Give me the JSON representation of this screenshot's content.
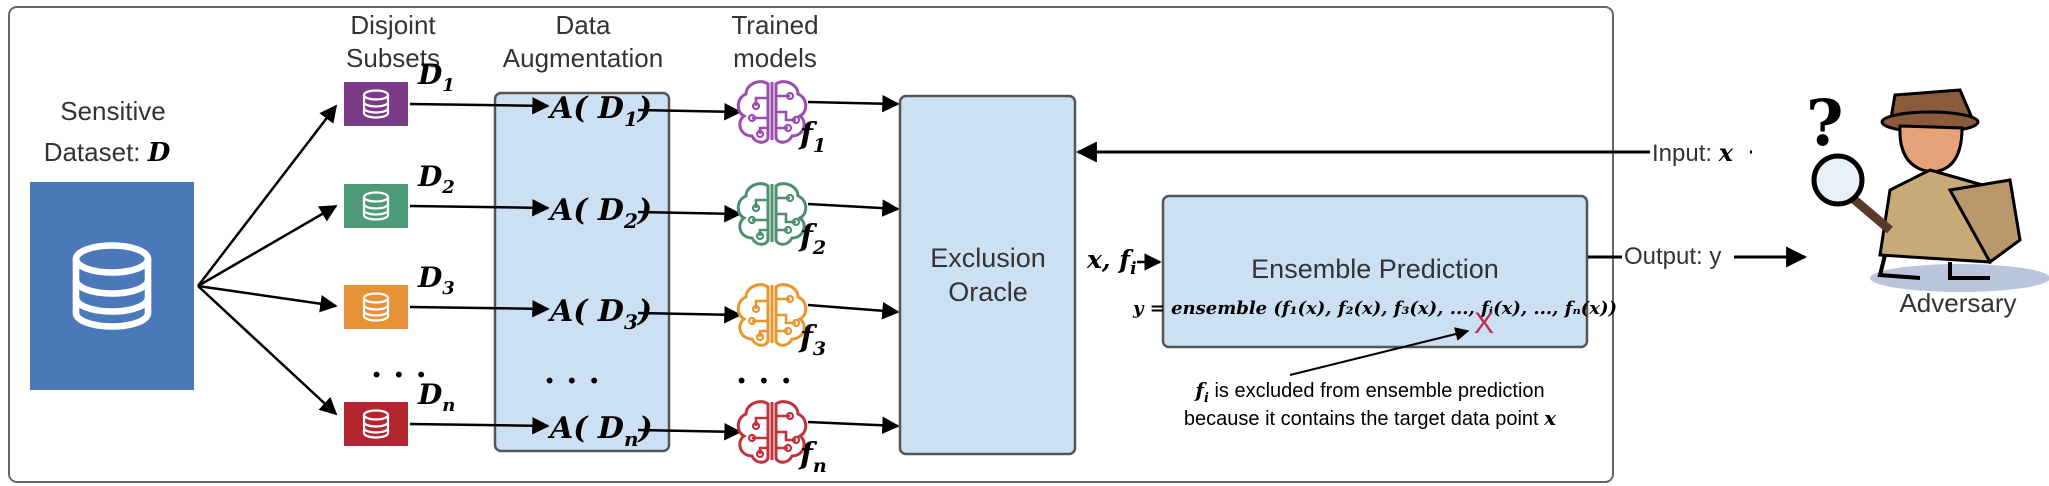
{
  "labels": {
    "dataset_line1": "Sensitive",
    "dataset_line2": "Dataset: ",
    "dataset_var": "D",
    "subsets_line1": "Disjoint",
    "subsets_line2": "Subsets",
    "augment_line1": "Data",
    "augment_line2": "Augmentation",
    "models_line1": "Trained",
    "models_line2": "models",
    "oracle_line1": "Exclusion",
    "oracle_line2": "Oracle",
    "oracle_out": "x, f",
    "oracle_out_sub": "i",
    "ensemble_title": "Ensemble Prediction",
    "ensemble_formula": "y = ensemble (f₁(x), f₂(x), f₃(x), ..., fᵢ(x), ..., fₙ(x))",
    "input_label": "Input: ",
    "input_var": "x",
    "output_label": "Output: y",
    "adversary": "Adversary",
    "question_mark": "?",
    "excluded_line1_var": "f",
    "excluded_line1_sub": "i",
    "excluded_line1": " is excluded from ensemble prediction",
    "excluded_line2": "because it contains the target data point ",
    "excluded_line2_var": "x",
    "cross_mark": "X",
    "ellipsis": ". . ."
  },
  "subsets": [
    {
      "var": "D",
      "sub": "1",
      "aug": "A( D",
      "aug_close": ")",
      "model": "f",
      "model_sub": "1",
      "color": "#7B3A86",
      "model_color": "#9B4DB0"
    },
    {
      "var": "D",
      "sub": "2",
      "aug": "A( D",
      "aug_close": ")",
      "model": "f",
      "model_sub": "2",
      "color": "#4E9A78",
      "model_color": "#4E8F6F"
    },
    {
      "var": "D",
      "sub": "3",
      "aug": "A( D",
      "aug_close": ")",
      "model": "f",
      "model_sub": "3",
      "color": "#E69136",
      "model_color": "#E8962E"
    },
    {
      "var": "D",
      "sub": "n",
      "aug": "A( D",
      "aug_close": ")",
      "model": "f",
      "model_sub": "n",
      "color": "#B32630",
      "model_color": "#C0333E"
    }
  ],
  "colors": {
    "dataset_fill": "#4A78B8",
    "panel_fill": "#CCE0F4",
    "panel_stroke": "#555555",
    "cross": "#C0304A"
  }
}
